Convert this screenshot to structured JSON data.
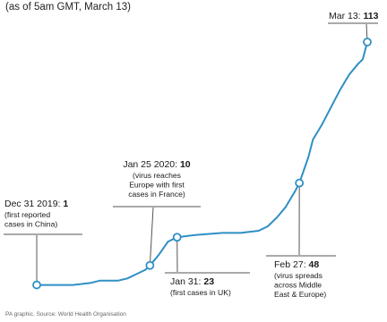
{
  "header": {
    "subtitle": "(as of 5am GMT, March 13)"
  },
  "footer": {
    "source": "PA graphic. Source: World Health Organisation"
  },
  "colors": {
    "line": "#2f8fc4",
    "marker_fill": "#ffffff",
    "leader": "#555555"
  },
  "chart_data": {
    "type": "line",
    "x_axis": {
      "kind": "date",
      "range": [
        "2019-12-31",
        "2020-03-13"
      ]
    },
    "y_axis": {
      "range": [
        0,
        113
      ],
      "visible": false
    },
    "grid": false,
    "series": [
      {
        "x": [
          "2019-12-31",
          "2020-01-04",
          "2020-01-08",
          "2020-01-12",
          "2020-01-14",
          "2020-01-16",
          "2020-01-18",
          "2020-01-20",
          "2020-01-22",
          "2020-01-24",
          "2020-01-25",
          "2020-01-27",
          "2020-01-29",
          "2020-01-31",
          "2020-02-04",
          "2020-02-10",
          "2020-02-14",
          "2020-02-18",
          "2020-02-20",
          "2020-02-22",
          "2020-02-24",
          "2020-02-26",
          "2020-02-27",
          "2020-02-29",
          "2020-03-01",
          "2020-03-03",
          "2020-03-05",
          "2020-03-07",
          "2020-03-09",
          "2020-03-11",
          "2020-03-12",
          "2020-03-13"
        ],
        "y": [
          1,
          1,
          1,
          2,
          3,
          3,
          3,
          4,
          6,
          8,
          10,
          15,
          21,
          23,
          24,
          25,
          25,
          26,
          28,
          32,
          37,
          44,
          48,
          60,
          68,
          75,
          83,
          91,
          98,
          103,
          105,
          113
        ]
      }
    ],
    "annotations": [
      {
        "date_label": "Dec 31 2019:",
        "value_label": "1",
        "note": [
          "(first reported",
          "cases in China)"
        ],
        "x": "2019-12-31",
        "y": 1
      },
      {
        "date_label": "Jan 25 2020:",
        "value_label": "10",
        "note": [
          "(virus reaches",
          "Europe with first",
          "cases in France)"
        ],
        "x": "2020-01-25",
        "y": 10
      },
      {
        "date_label": "Jan 31:",
        "value_label": "23",
        "note": [
          "(first cases in UK)"
        ],
        "x": "2020-01-31",
        "y": 23
      },
      {
        "date_label": "Feb 27:",
        "value_label": "48",
        "note": [
          "(virus spreads",
          "across Middle",
          "East & Europe)"
        ],
        "x": "2020-02-27",
        "y": 48
      },
      {
        "date_label": "Mar 13:",
        "value_label": "113",
        "note": [],
        "x": "2020-03-13",
        "y": 113
      }
    ]
  }
}
